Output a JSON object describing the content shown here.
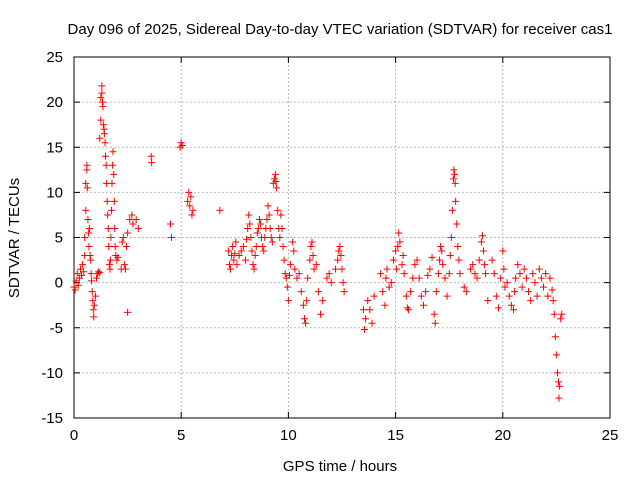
{
  "chart_data": {
    "type": "scatter",
    "title": "Day 096 of 2025, Sidereal Day-to-day VTEC variation (SDTVAR) for receiver cas1",
    "xlabel": "GPS time / hours",
    "ylabel": "SDTVAR / TECUs",
    "xlim": [
      0,
      25
    ],
    "ylim": [
      -15,
      25
    ],
    "xticks": [
      0,
      5,
      10,
      15,
      20,
      25
    ],
    "yticks": [
      -15,
      -10,
      -5,
      0,
      5,
      10,
      15,
      20,
      25
    ],
    "xtick_labels": [
      "0",
      "5",
      "10",
      "15",
      "20",
      "25"
    ],
    "ytick_labels": [
      "-15",
      "-10",
      "-5",
      "0",
      "5",
      "10",
      "15",
      "20",
      "25"
    ],
    "grid": true,
    "marker": "+",
    "marker_color": "#ff0000",
    "series": [
      {
        "name": "SDTVAR",
        "points": [
          [
            0.0,
            -0.5
          ],
          [
            0.05,
            -0.8
          ],
          [
            0.1,
            0.2
          ],
          [
            0.15,
            1.0
          ],
          [
            0.2,
            -0.3
          ],
          [
            0.25,
            0.5
          ],
          [
            0.3,
            1.5
          ],
          [
            0.35,
            0.8
          ],
          [
            0.4,
            2.0
          ],
          [
            0.45,
            1.2
          ],
          [
            0.5,
            3.0
          ],
          [
            0.5,
            5.0
          ],
          [
            0.55,
            8.0
          ],
          [
            0.55,
            11.0
          ],
          [
            0.6,
            12.5
          ],
          [
            0.6,
            13.0
          ],
          [
            0.62,
            10.5
          ],
          [
            0.65,
            7.0
          ],
          [
            0.68,
            5.5
          ],
          [
            0.7,
            4.0
          ],
          [
            0.72,
            6.0
          ],
          [
            0.75,
            3.0
          ],
          [
            0.78,
            2.5
          ],
          [
            0.8,
            1.0
          ],
          [
            0.82,
            0.2
          ],
          [
            0.85,
            -1.0
          ],
          [
            0.88,
            -2.0
          ],
          [
            0.9,
            -3.0
          ],
          [
            0.92,
            -3.8
          ],
          [
            0.95,
            -2.5
          ],
          [
            1.0,
            -1.5
          ],
          [
            1.05,
            0.5
          ],
          [
            1.1,
            1.0
          ],
          [
            1.15,
            1.2
          ],
          [
            1.2,
            1.1
          ],
          [
            1.2,
            16.0
          ],
          [
            1.25,
            18.0
          ],
          [
            1.25,
            20.5
          ],
          [
            1.3,
            21.8
          ],
          [
            1.3,
            21.0
          ],
          [
            1.33,
            20.0
          ],
          [
            1.35,
            19.5
          ],
          [
            1.37,
            17.5
          ],
          [
            1.4,
            17.0
          ],
          [
            1.42,
            16.5
          ],
          [
            1.45,
            15.5
          ],
          [
            1.47,
            14.0
          ],
          [
            1.5,
            13.0
          ],
          [
            1.52,
            11.0
          ],
          [
            1.55,
            9.0
          ],
          [
            1.57,
            7.5
          ],
          [
            1.6,
            6.0
          ],
          [
            1.62,
            4.0
          ],
          [
            1.65,
            2.0
          ],
          [
            1.68,
            1.5
          ],
          [
            1.7,
            2.5
          ],
          [
            1.72,
            5.0
          ],
          [
            1.75,
            8.0
          ],
          [
            1.77,
            11.0
          ],
          [
            1.8,
            13.0
          ],
          [
            1.82,
            14.5
          ],
          [
            1.85,
            12.0
          ],
          [
            1.88,
            9.0
          ],
          [
            1.9,
            6.0
          ],
          [
            1.92,
            4.0
          ],
          [
            1.95,
            3.0
          ],
          [
            2.0,
            2.5
          ],
          [
            2.05,
            2.8
          ],
          [
            2.2,
            1.5
          ],
          [
            2.25,
            4.5
          ],
          [
            2.3,
            5.0
          ],
          [
            2.35,
            2.0
          ],
          [
            2.4,
            1.5
          ],
          [
            2.45,
            4.0
          ],
          [
            2.5,
            5.5
          ],
          [
            2.5,
            -3.3
          ],
          [
            2.6,
            7.0
          ],
          [
            2.7,
            7.5
          ],
          [
            2.75,
            6.5
          ],
          [
            2.9,
            7.0
          ],
          [
            3.0,
            6.0
          ],
          [
            3.6,
            14.0
          ],
          [
            3.62,
            13.3
          ],
          [
            4.5,
            6.5
          ],
          [
            4.55,
            5.0
          ],
          [
            4.95,
            15.0
          ],
          [
            5.0,
            15.5
          ],
          [
            5.05,
            15.2
          ],
          [
            5.3,
            9.0
          ],
          [
            5.35,
            10.0
          ],
          [
            5.4,
            8.5
          ],
          [
            5.45,
            9.5
          ],
          [
            5.5,
            7.5
          ],
          [
            5.55,
            8.0
          ],
          [
            6.8,
            8.0
          ],
          [
            7.2,
            3.5
          ],
          [
            7.25,
            2.0
          ],
          [
            7.3,
            1.5
          ],
          [
            7.35,
            3.0
          ],
          [
            7.4,
            4.0
          ],
          [
            7.45,
            2.5
          ],
          [
            7.5,
            3.2
          ],
          [
            7.55,
            4.5
          ],
          [
            7.6,
            2.0
          ],
          [
            7.7,
            3.0
          ],
          [
            7.8,
            3.5
          ],
          [
            7.9,
            4.0
          ],
          [
            8.0,
            2.5
          ],
          [
            8.05,
            4.8
          ],
          [
            8.1,
            6.0
          ],
          [
            8.15,
            7.5
          ],
          [
            8.2,
            6.5
          ],
          [
            8.25,
            5.0
          ],
          [
            8.3,
            3.5
          ],
          [
            8.35,
            2.0
          ],
          [
            8.4,
            1.5
          ],
          [
            8.45,
            3.0
          ],
          [
            8.5,
            4.0
          ],
          [
            8.55,
            5.5
          ],
          [
            8.6,
            6.0
          ],
          [
            8.65,
            7.0
          ],
          [
            8.7,
            6.5
          ],
          [
            8.75,
            5.0
          ],
          [
            8.8,
            4.0
          ],
          [
            8.85,
            3.5
          ],
          [
            8.9,
            5.0
          ],
          [
            8.95,
            6.0
          ],
          [
            9.0,
            7.0
          ],
          [
            9.05,
            8.5
          ],
          [
            9.1,
            7.5
          ],
          [
            9.15,
            6.0
          ],
          [
            9.2,
            5.0
          ],
          [
            9.25,
            4.5
          ],
          [
            9.3,
            11.0
          ],
          [
            9.35,
            11.5
          ],
          [
            9.4,
            12.0
          ],
          [
            9.42,
            11.2
          ],
          [
            9.45,
            10.5
          ],
          [
            9.5,
            8.0
          ],
          [
            9.55,
            6.0
          ],
          [
            9.6,
            5.0
          ],
          [
            9.65,
            7.5
          ],
          [
            9.7,
            6.0
          ],
          [
            9.75,
            4.0
          ],
          [
            9.8,
            2.5
          ],
          [
            9.85,
            1.0
          ],
          [
            9.9,
            0.5
          ],
          [
            9.95,
            -0.5
          ],
          [
            10.0,
            -2.0
          ],
          [
            10.05,
            0.8
          ],
          [
            10.1,
            2.0
          ],
          [
            10.2,
            4.5
          ],
          [
            10.25,
            3.5
          ],
          [
            10.3,
            1.5
          ],
          [
            10.4,
            0.5
          ],
          [
            10.5,
            1.0
          ],
          [
            10.6,
            -1.0
          ],
          [
            10.7,
            -2.5
          ],
          [
            10.75,
            -4.0
          ],
          [
            10.8,
            -4.5
          ],
          [
            10.85,
            -2.0
          ],
          [
            10.9,
            0.5
          ],
          [
            11.0,
            2.5
          ],
          [
            11.05,
            4.0
          ],
          [
            11.1,
            4.5
          ],
          [
            11.15,
            3.0
          ],
          [
            11.2,
            1.5
          ],
          [
            11.3,
            2.0
          ],
          [
            11.4,
            -1.0
          ],
          [
            11.5,
            -3.5
          ],
          [
            11.6,
            -2.0
          ],
          [
            11.8,
            0.5
          ],
          [
            11.9,
            1.0
          ],
          [
            12.0,
            0.0
          ],
          [
            12.2,
            1.5
          ],
          [
            12.3,
            2.5
          ],
          [
            12.35,
            3.5
          ],
          [
            12.4,
            4.0
          ],
          [
            12.45,
            3.0
          ],
          [
            12.5,
            1.5
          ],
          [
            12.55,
            0.0
          ],
          [
            12.6,
            -1.0
          ],
          [
            13.5,
            -3.0
          ],
          [
            13.55,
            -5.2
          ],
          [
            13.6,
            -4.0
          ],
          [
            13.7,
            -2.0
          ],
          [
            13.8,
            -3.0
          ],
          [
            13.9,
            -4.5
          ],
          [
            14.0,
            -1.5
          ],
          [
            14.3,
            1.0
          ],
          [
            14.4,
            -1.0
          ],
          [
            14.5,
            -2.5
          ],
          [
            14.55,
            0.5
          ],
          [
            14.6,
            1.5
          ],
          [
            14.7,
            -0.5
          ],
          [
            14.8,
            0.0
          ],
          [
            14.9,
            2.5
          ],
          [
            15.0,
            3.5
          ],
          [
            15.05,
            1.5
          ],
          [
            15.1,
            4.0
          ],
          [
            15.15,
            5.5
          ],
          [
            15.2,
            4.5
          ],
          [
            15.3,
            2.0
          ],
          [
            15.35,
            3.0
          ],
          [
            15.4,
            1.0
          ],
          [
            15.5,
            -1.5
          ],
          [
            15.55,
            -2.8
          ],
          [
            15.6,
            -3.0
          ],
          [
            15.7,
            -1.0
          ],
          [
            15.8,
            0.5
          ],
          [
            15.9,
            2.0
          ],
          [
            16.0,
            2.5
          ],
          [
            16.1,
            0.5
          ],
          [
            16.2,
            -1.5
          ],
          [
            16.3,
            -2.5
          ],
          [
            16.4,
            -1.0
          ],
          [
            16.5,
            0.8
          ],
          [
            16.6,
            1.5
          ],
          [
            16.7,
            2.8
          ],
          [
            16.8,
            -3.5
          ],
          [
            16.85,
            -4.5
          ],
          [
            16.9,
            -1.0
          ],
          [
            17.0,
            1.0
          ],
          [
            17.05,
            2.5
          ],
          [
            17.1,
            4.0
          ],
          [
            17.15,
            3.5
          ],
          [
            17.2,
            2.0
          ],
          [
            17.3,
            0.5
          ],
          [
            17.4,
            -1.5
          ],
          [
            17.5,
            1.0
          ],
          [
            17.55,
            3.0
          ],
          [
            17.6,
            5.0
          ],
          [
            17.65,
            8.0
          ],
          [
            17.7,
            11.5
          ],
          [
            17.72,
            12.5
          ],
          [
            17.75,
            12.0
          ],
          [
            17.78,
            11.0
          ],
          [
            17.8,
            9.0
          ],
          [
            17.85,
            6.5
          ],
          [
            17.9,
            4.0
          ],
          [
            17.95,
            2.5
          ],
          [
            18.0,
            1.0
          ],
          [
            18.2,
            -0.5
          ],
          [
            18.3,
            -1.0
          ],
          [
            18.5,
            1.5
          ],
          [
            18.6,
            2.0
          ],
          [
            18.7,
            1.0
          ],
          [
            18.8,
            0.5
          ],
          [
            18.9,
            2.5
          ],
          [
            19.0,
            4.5
          ],
          [
            19.05,
            5.2
          ],
          [
            19.1,
            3.5
          ],
          [
            19.15,
            2.0
          ],
          [
            19.2,
            1.0
          ],
          [
            19.3,
            -2.0
          ],
          [
            19.5,
            2.5
          ],
          [
            19.6,
            1.0
          ],
          [
            19.7,
            -1.5
          ],
          [
            19.8,
            -2.8
          ],
          [
            19.9,
            0.5
          ],
          [
            20.0,
            3.5
          ],
          [
            20.05,
            1.5
          ],
          [
            20.1,
            -0.5
          ],
          [
            20.2,
            0.0
          ],
          [
            20.3,
            -1.5
          ],
          [
            20.4,
            -2.5
          ],
          [
            20.5,
            -3.0
          ],
          [
            20.55,
            -1.0
          ],
          [
            20.6,
            0.5
          ],
          [
            20.7,
            2.0
          ],
          [
            20.8,
            1.0
          ],
          [
            20.9,
            -0.5
          ],
          [
            21.0,
            1.5
          ],
          [
            21.1,
            0.5
          ],
          [
            21.2,
            -1.0
          ],
          [
            21.3,
            -2.0
          ],
          [
            21.4,
            1.0
          ],
          [
            21.5,
            0.0
          ],
          [
            21.6,
            -1.5
          ],
          [
            21.7,
            1.5
          ],
          [
            21.8,
            0.5
          ],
          [
            21.9,
            -0.5
          ],
          [
            22.0,
            1.0
          ],
          [
            22.1,
            -1.5
          ],
          [
            22.2,
            0.5
          ],
          [
            22.3,
            -0.8
          ],
          [
            22.35,
            -2.0
          ],
          [
            22.4,
            -3.5
          ],
          [
            22.45,
            -6.0
          ],
          [
            22.5,
            -8.0
          ],
          [
            22.55,
            -10.0
          ],
          [
            22.6,
            -11.0
          ],
          [
            22.62,
            -12.8
          ],
          [
            22.65,
            -11.5
          ],
          [
            22.7,
            -4.0
          ],
          [
            22.75,
            -3.5
          ]
        ]
      }
    ]
  }
}
